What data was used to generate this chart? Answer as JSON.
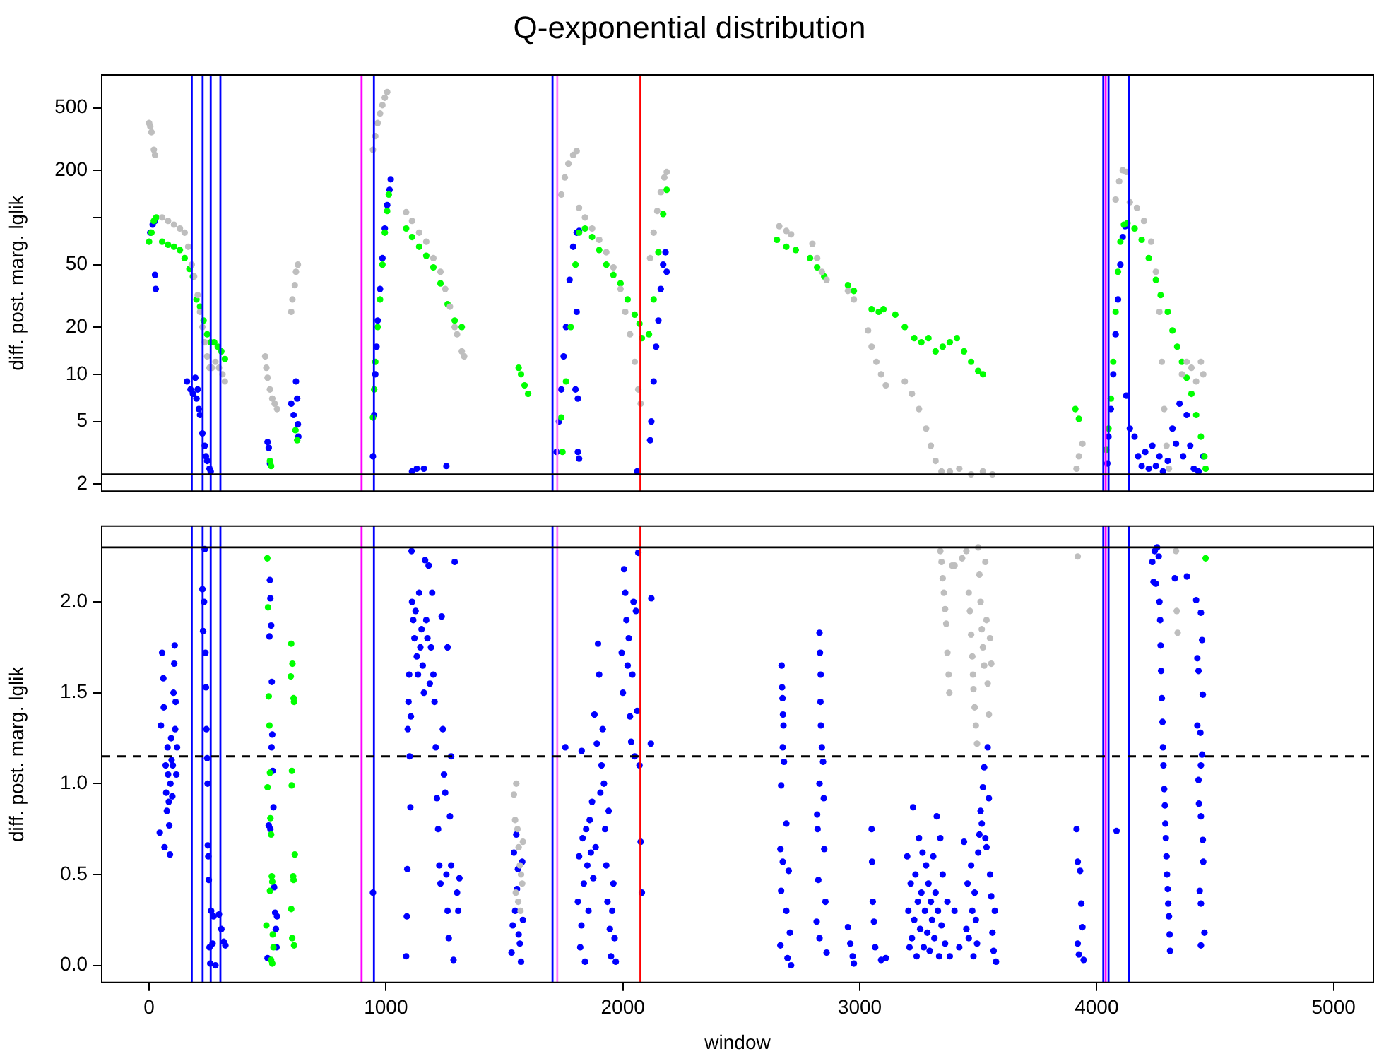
{
  "chart_data": [
    {
      "type": "scatter",
      "title": "Q-exponential distribution",
      "ylabel": "diff. post. marg. lglik",
      "xlim": [
        -200,
        5168
      ],
      "ylim": [
        1.8,
        811
      ],
      "yticks": [
        2,
        5,
        10,
        20,
        50,
        {
          "value": 100,
          "label": null
        },
        200,
        500
      ],
      "log": "y",
      "tick_labels": "y",
      "marker": "circle",
      "ref_lines": [
        {
          "axis": "x",
          "value": 180,
          "color": "#0000ff"
        },
        {
          "axis": "x",
          "value": 226,
          "color": "#0000ff"
        },
        {
          "axis": "x",
          "value": 260,
          "color": "#0000ff"
        },
        {
          "axis": "x",
          "value": 301,
          "color": "#0000ff"
        },
        {
          "axis": "x",
          "value": 897,
          "color": "#ff00ff"
        },
        {
          "axis": "x",
          "value": 949,
          "color": "#0000ff"
        },
        {
          "axis": "x",
          "value": 1703,
          "color": "#0000ff"
        },
        {
          "axis": "x",
          "value": 1723,
          "color": "#ff77ff"
        },
        {
          "axis": "x",
          "value": 2074,
          "color": "#ff0000"
        },
        {
          "axis": "x",
          "value": 4028,
          "color": "#0000ff"
        },
        {
          "axis": "x",
          "value": 4038,
          "color": "#ff00ff"
        },
        {
          "axis": "x",
          "value": 4050,
          "color": "#0000ff"
        },
        {
          "axis": "x",
          "value": 4135,
          "color": "#0000ff"
        },
        {
          "axis": "y",
          "value": 2.3,
          "color": "#000000"
        }
      ],
      "series": [
        {
          "color": "#bebebe",
          "x": [
            0,
            5,
            10,
            20,
            25,
            55,
            80,
            105,
            130,
            150,
            165,
            180,
            190,
            205,
            215,
            225,
            235,
            245,
            255,
            265,
            280,
            295,
            310,
            320,
            490,
            495,
            500,
            510,
            520,
            530,
            540,
            600,
            605,
            615,
            620,
            628,
            945,
            955,
            965,
            975,
            985,
            995,
            1005,
            1085,
            1110,
            1140,
            1170,
            1200,
            1230,
            1250,
            1270,
            1290,
            1300,
            1320,
            1330,
            1740,
            1755,
            1770,
            1790,
            1805,
            1815,
            1840,
            1870,
            1900,
            1930,
            1960,
            1990,
            2010,
            2030,
            2050,
            2065,
            2075,
            2115,
            2130,
            2145,
            2160,
            2175,
            2185,
            2660,
            2690,
            2710,
            2800,
            2820,
            2840,
            2860,
            2950,
            2975,
            3035,
            3050,
            3070,
            3090,
            3110,
            3190,
            3220,
            3250,
            3280,
            3300,
            3320,
            3345,
            3380,
            3420,
            3470,
            3520,
            3560,
            3915,
            3925,
            3940,
            4080,
            4095,
            4110,
            4125,
            4140,
            4170,
            4200,
            4230,
            4250,
            4265,
            4275,
            4285,
            4295,
            4305,
            4360,
            4380,
            4400,
            4420,
            4440,
            4450
          ],
          "values": [
            400,
            380,
            350,
            270,
            250,
            100,
            95,
            90,
            85,
            80,
            65,
            50,
            42,
            32,
            25,
            20,
            16,
            13,
            11,
            11,
            12,
            11,
            10,
            9,
            13,
            11,
            9.5,
            8,
            7,
            6.5,
            6,
            25,
            30,
            37,
            45,
            50,
            270,
            330,
            400,
            460,
            520,
            580,
            630,
            108,
            95,
            80,
            70,
            55,
            45,
            35,
            27,
            20,
            18,
            14,
            13,
            140,
            180,
            220,
            250,
            265,
            115,
            100,
            85,
            72,
            60,
            48,
            35,
            25,
            18,
            12,
            8,
            6.5,
            55,
            80,
            110,
            145,
            180,
            195,
            88,
            82,
            78,
            68,
            55,
            45,
            40,
            34,
            30,
            19,
            15,
            12,
            10,
            8.5,
            9,
            7.5,
            6,
            4.5,
            3.5,
            2.8,
            2.4,
            2.4,
            2.5,
            2.3,
            2.4,
            2.3,
            2.5,
            3.0,
            3.6,
            130,
            170,
            200,
            195,
            125,
            115,
            95,
            70,
            45,
            25,
            12,
            6,
            3.5,
            2.5,
            10,
            12,
            11,
            9,
            12,
            10
          ]
        },
        {
          "color": "#00ff00",
          "x": [
            0,
            10,
            20,
            30,
            55,
            80,
            105,
            130,
            150,
            170,
            185,
            200,
            215,
            230,
            245,
            260,
            275,
            290,
            305,
            320,
            510,
            515,
            618,
            625,
            945,
            950,
            955,
            965,
            975,
            985,
            995,
            1005,
            1012,
            1085,
            1110,
            1140,
            1170,
            1200,
            1230,
            1260,
            1290,
            1320,
            1560,
            1570,
            1585,
            1600,
            1740,
            1745,
            1760,
            1780,
            1800,
            1815,
            1840,
            1870,
            1900,
            1930,
            1960,
            1990,
            2020,
            2050,
            2070,
            2080,
            2110,
            2130,
            2150,
            2170,
            2185,
            2650,
            2690,
            2730,
            2790,
            2820,
            2850,
            2950,
            2975,
            3050,
            3080,
            3100,
            3150,
            3190,
            3230,
            3260,
            3290,
            3320,
            3350,
            3380,
            3410,
            3440,
            3470,
            3500,
            3520,
            3910,
            3925,
            4040,
            4050,
            4060,
            4070,
            4080,
            4090,
            4100,
            4115,
            4130,
            4160,
            4190,
            4220,
            4250,
            4270,
            4300,
            4320,
            4340,
            4360,
            4380,
            4400,
            4420,
            4440,
            4455,
            4460
          ],
          "values": [
            70,
            80,
            95,
            100,
            70,
            67,
            65,
            62,
            55,
            47,
            42,
            30,
            27,
            22,
            18,
            16,
            16,
            15,
            14,
            12.5,
            2.8,
            2.6,
            4.4,
            3.8,
            5.3,
            8,
            12,
            20,
            30,
            50,
            80,
            110,
            140,
            85,
            75,
            65,
            57,
            48,
            38,
            28,
            22,
            20,
            11,
            10,
            8.5,
            7.5,
            5.3,
            3.2,
            9,
            20,
            50,
            80,
            85,
            75,
            62,
            50,
            43,
            38,
            30,
            24,
            21,
            17,
            18,
            30,
            60,
            105,
            150,
            72,
            65,
            62,
            55,
            48,
            42,
            37,
            34,
            26,
            25,
            26,
            24,
            20,
            17,
            16,
            17,
            14,
            15,
            16,
            17,
            14,
            12,
            10.5,
            10,
            6,
            5.2,
            3.3,
            4.5,
            7,
            12,
            25,
            45,
            70,
            90,
            92,
            85,
            72,
            55,
            40,
            32,
            25,
            19,
            15,
            12,
            9.5,
            7.5,
            5.5,
            4,
            3,
            2.5
          ]
        },
        {
          "color": "#0000ff",
          "x": [
            5,
            15,
            25,
            25,
            28,
            160,
            175,
            185,
            195,
            200,
            205,
            210,
            215,
            225,
            235,
            240,
            245,
            255,
            260,
            500,
            505,
            510,
            600,
            610,
            620,
            625,
            628,
            630,
            945,
            950,
            955,
            960,
            965,
            975,
            985,
            995,
            1005,
            1015,
            1020,
            1110,
            1130,
            1160,
            1255,
            1720,
            1730,
            1740,
            1750,
            1760,
            1775,
            1790,
            1805,
            1815,
            1800,
            1810,
            1810,
            1815,
            1805,
            2060,
            2115,
            2120,
            2130,
            2140,
            2150,
            2160,
            2170,
            2180,
            2185,
            4045,
            4050,
            4060,
            4070,
            4080,
            4090,
            4100,
            4110,
            4120,
            4125,
            4140,
            4160,
            4175,
            4190,
            4205,
            4220,
            4235,
            4250,
            4265,
            4280,
            4300,
            4320,
            4335,
            4350,
            4365,
            4380,
            4395,
            4410,
            4430,
            4450
          ],
          "values": [
            80,
            90,
            95,
            43,
            35,
            9,
            8,
            7.5,
            9.5,
            7,
            8,
            6,
            5.5,
            4.2,
            3.5,
            3,
            2.8,
            2.5,
            2.4,
            3.7,
            3.4,
            2.7,
            6.5,
            5.5,
            9,
            7,
            4.8,
            4,
            3.0,
            5.5,
            10,
            15,
            22,
            35,
            55,
            85,
            120,
            150,
            175,
            2.4,
            2.5,
            2.5,
            2.6,
            3.2,
            5,
            8,
            13,
            20,
            40,
            65,
            80,
            82,
            8,
            7,
            3.2,
            2.9,
            25,
            2.4,
            3.8,
            5,
            9,
            15,
            22,
            35,
            50,
            60,
            45,
            2.7,
            4,
            6,
            10,
            18,
            30,
            50,
            75,
            88,
            7.3,
            4.5,
            4,
            3,
            2.6,
            3.2,
            2.5,
            3.5,
            2.6,
            3.0,
            2.4,
            2.8,
            4.5,
            3.6,
            6.5,
            3,
            5.5,
            3.5,
            2.5,
            2.4,
            3
          ]
        }
      ]
    },
    {
      "type": "scatter",
      "xlabel": "window",
      "ylabel": "diff. post. marg. lglik",
      "xlim": [
        -200,
        5168
      ],
      "ylim": [
        -0.094,
        2.417
      ],
      "xticks": [
        0,
        1000,
        2000,
        3000,
        4000,
        5000
      ],
      "yticks": [
        {
          "value": 0,
          "label": "0.0"
        },
        0.5,
        {
          "value": 1,
          "label": "1.0"
        },
        1.5,
        {
          "value": 2,
          "label": "2.0"
        }
      ],
      "marker": "circle",
      "ref_lines": [
        {
          "axis": "x",
          "value": 180,
          "color": "#0000ff"
        },
        {
          "axis": "x",
          "value": 226,
          "color": "#0000ff"
        },
        {
          "axis": "x",
          "value": 260,
          "color": "#0000ff"
        },
        {
          "axis": "x",
          "value": 301,
          "color": "#0000ff"
        },
        {
          "axis": "x",
          "value": 897,
          "color": "#ff00ff"
        },
        {
          "axis": "x",
          "value": 949,
          "color": "#0000ff"
        },
        {
          "axis": "x",
          "value": 1703,
          "color": "#0000ff"
        },
        {
          "axis": "x",
          "value": 1723,
          "color": "#ff77ff"
        },
        {
          "axis": "x",
          "value": 2074,
          "color": "#ff0000"
        },
        {
          "axis": "x",
          "value": 4028,
          "color": "#0000ff"
        },
        {
          "axis": "x",
          "value": 4038,
          "color": "#ff00ff"
        },
        {
          "axis": "x",
          "value": 4050,
          "color": "#0000ff"
        },
        {
          "axis": "x",
          "value": 4135,
          "color": "#0000ff"
        },
        {
          "axis": "y",
          "value": 2.3,
          "color": "#000000"
        },
        {
          "axis": "y",
          "value": 1.15,
          "color": "#000000",
          "line_style": "dashed"
        }
      ],
      "series": [
        {
          "color": "#bebebe",
          "x": [
            1540,
            1550,
            1545,
            1555,
            1560,
            1565,
            1570,
            1575,
            1548,
            1558,
            1568,
            1578,
            3340,
            3345,
            3350,
            3360,
            3365,
            3370,
            3375,
            3378,
            3355,
            3400,
            3432,
            3450,
            3460,
            3465,
            3470,
            3475,
            3478,
            3480,
            3485,
            3490,
            3495,
            3500,
            3505,
            3510,
            3515,
            3520,
            3525,
            3530,
            3535,
            3540,
            3545,
            3550,
            3555,
            3390,
            3920,
            4335,
            4338,
            4342
          ],
          "values": [
            0.94,
            1.0,
            0.8,
            0.75,
            0.65,
            0.55,
            0.5,
            0.45,
            0.4,
            0.35,
            0.3,
            0.68,
            2.28,
            2.22,
            2.13,
            1.96,
            1.88,
            1.72,
            1.6,
            1.5,
            2.05,
            2.2,
            2.24,
            2.28,
            2.05,
            1.95,
            1.82,
            1.7,
            1.6,
            1.52,
            1.42,
            1.32,
            1.22,
            2.3,
            2.15,
            2.0,
            1.85,
            1.75,
            1.65,
            2.22,
            1.9,
            1.55,
            1.38,
            1.8,
            1.66,
            2.2,
            2.25,
            2.28,
            1.95,
            1.83
          ]
        },
        {
          "color": "#00ff00",
          "x": [
            499,
            502,
            505,
            508,
            510,
            500,
            512,
            515,
            518,
            520,
            510,
            495,
            522,
            525,
            515,
            520,
            600,
            605,
            598,
            610,
            612,
            603,
            602,
            615,
            608,
            610,
            600,
            604,
            612,
            4460
          ],
          "values": [
            2.24,
            1.97,
            1.48,
            1.32,
            1.06,
            0.98,
            0.81,
            0.72,
            0.49,
            0.46,
            0.41,
            0.22,
            0.17,
            0.1,
            0.03,
            0.01,
            1.77,
            1.66,
            1.59,
            1.47,
            1.45,
            1.07,
            0.99,
            0.61,
            0.49,
            0.47,
            0.31,
            0.15,
            0.11,
            2.24
          ]
        },
        {
          "color": "#0000ff",
          "x": [
            45,
            50,
            55,
            60,
            62,
            65,
            70,
            72,
            75,
            78,
            80,
            83,
            85,
            88,
            90,
            93,
            95,
            98,
            100,
            103,
            106,
            108,
            110,
            112,
            115,
            118,
            225,
            228,
            232,
            238,
            240,
            242,
            245,
            247,
            248,
            250,
            252,
            255,
            258,
            262,
            268,
            272,
            280,
            295,
            305,
            315,
            322,
            235,
            500,
            510,
            512,
            515,
            508,
            518,
            520,
            517,
            522,
            525,
            505,
            512,
            528,
            532,
            535,
            538,
            540,
            945,
            1085,
            1088,
            1090,
            1092,
            1095,
            1098,
            1100,
            1103,
            1105,
            1108,
            1110,
            1115,
            1120,
            1125,
            1130,
            1135,
            1140,
            1145,
            1150,
            1155,
            1160,
            1165,
            1170,
            1175,
            1180,
            1185,
            1190,
            1195,
            1200,
            1205,
            1210,
            1215,
            1220,
            1225,
            1230,
            1235,
            1240,
            1245,
            1250,
            1255,
            1260,
            1265,
            1270,
            1275,
            1285,
            1300,
            1305,
            1310,
            1290,
            1260,
            1275,
            1530,
            1535,
            1540,
            1545,
            1550,
            1553,
            1557,
            1560,
            1565,
            1570,
            1575,
            1578,
            1757,
            1826,
            1810,
            1815,
            1820,
            1825,
            1830,
            1835,
            1840,
            1845,
            1850,
            1855,
            1860,
            1865,
            1870,
            1875,
            1880,
            1885,
            1890,
            1895,
            1900,
            1905,
            1910,
            1915,
            1920,
            1925,
            1930,
            1935,
            1940,
            1945,
            1950,
            1955,
            1960,
            1965,
            1970,
            1995,
            2000,
            2005,
            2010,
            2015,
            2020,
            2025,
            2030,
            2035,
            2040,
            2045,
            2050,
            2055,
            2060,
            2065,
            2070,
            2075,
            2080,
            2120,
            2118,
            2670,
            2672,
            2674,
            2676,
            2678,
            2675,
            2680,
            2668,
            2690,
            2665,
            2675,
            2700,
            2668,
            2690,
            2705,
            2665,
            2695,
            2710,
            2830,
            2832,
            2835,
            2834,
            2836,
            2840,
            2845,
            2830,
            2848,
            2820,
            2822,
            2850,
            2825,
            2855,
            2818,
            2830,
            2860,
            2950,
            2960,
            2970,
            2975,
            3050,
            3052,
            3055,
            3060,
            3065,
            3090,
            3110,
            3200,
            3205,
            3210,
            3215,
            3220,
            3225,
            3230,
            3235,
            3240,
            3245,
            3250,
            3255,
            3260,
            3265,
            3270,
            3275,
            3280,
            3285,
            3290,
            3295,
            3300,
            3305,
            3310,
            3315,
            3320,
            3325,
            3330,
            3335,
            3340,
            3345,
            3350,
            3360,
            3370,
            3380,
            3400,
            3420,
            3440,
            3450,
            3455,
            3460,
            3470,
            3475,
            3480,
            3485,
            3490,
            3495,
            3500,
            3505,
            3510,
            3515,
            3520,
            3525,
            3530,
            3535,
            3540,
            3545,
            3550,
            3555,
            3560,
            3565,
            3570,
            3575,
            3915,
            3920,
            3930,
            3935,
            3940,
            3920,
            3945,
            3925,
            4084,
            4235,
            4245,
            4255,
            4262,
            4240,
            4250,
            4265,
            4268,
            4270,
            4272,
            4275,
            4278,
            4280,
            4282,
            4285,
            4288,
            4290,
            4292,
            4295,
            4297,
            4300,
            4302,
            4305,
            4308,
            4310,
            4330,
            4381,
            4420,
            4440,
            4445,
            4425,
            4430,
            4448,
            4425,
            4438,
            4445,
            4440,
            4430,
            4432,
            4440,
            4448,
            4450,
            4435,
            4440,
            4455,
            4440
          ],
          "values": [
            0.73,
            1.32,
            1.72,
            1.58,
            1.42,
            0.65,
            1.1,
            0.95,
            0.85,
            1.2,
            1.05,
            0.9,
            0.77,
            0.61,
            1.0,
            1.25,
            1.13,
            0.93,
            1.1,
            1.5,
            1.66,
            1.76,
            1.3,
            1.45,
            1.05,
            1.2,
            2.07,
            1.84,
            2.0,
            1.72,
            1.53,
            1.3,
            1.14,
            1.0,
            0.66,
            0.6,
            0.47,
            0.1,
            0.01,
            0.3,
            0.12,
            0.27,
            0.0,
            0.28,
            0.2,
            0.13,
            0.11,
            2.29,
            0.04,
            2.12,
            2.02,
            1.87,
            1.81,
            1.56,
            1.27,
            1.2,
            1.07,
            0.87,
            0.77,
            0.75,
            0.43,
            0.29,
            0.2,
            0.1,
            0.27,
            0.4,
            0.05,
            0.27,
            0.53,
            1.3,
            1.45,
            1.6,
            1.15,
            0.87,
            1.37,
            2.28,
            2.0,
            1.9,
            1.8,
            1.95,
            1.7,
            1.6,
            2.05,
            1.75,
            1.85,
            1.65,
            1.5,
            2.23,
            1.9,
            1.8,
            2.2,
            1.55,
            1.75,
            2.05,
            1.6,
            1.45,
            1.2,
            0.92,
            0.75,
            0.55,
            0.45,
            1.92,
            1.3,
            1.05,
            0.95,
            0.5,
            0.3,
            0.15,
            0.82,
            0.55,
            0.03,
            0.4,
            0.3,
            0.48,
            2.22,
            1.75,
            1.15,
            0.07,
            0.22,
            0.62,
            0.3,
            0.72,
            0.42,
            0.53,
            0.17,
            0.12,
            0.02,
            0.57,
            0.25,
            1.2,
            1.18,
            0.35,
            0.6,
            0.1,
            0.22,
            0.7,
            0.45,
            0.02,
            0.75,
            0.55,
            0.3,
            0.8,
            0.62,
            0.9,
            0.48,
            1.38,
            0.65,
            1.22,
            1.77,
            1.6,
            0.95,
            1.1,
            1.3,
            1.0,
            0.75,
            0.55,
            0.35,
            0.85,
            0.2,
            0.05,
            0.3,
            0.45,
            0.15,
            0.02,
            1.72,
            1.5,
            2.18,
            2.05,
            1.9,
            1.65,
            1.8,
            1.37,
            1.23,
            1.6,
            2.0,
            1.15,
            1.95,
            1.4,
            2.27,
            1.1,
            0.68,
            0.4,
            2.02,
            1.22,
            1.65,
            1.53,
            1.47,
            1.38,
            1.32,
            1.2,
            1.12,
            0.99,
            0.78,
            0.64,
            0.57,
            0.52,
            0.41,
            0.3,
            0.18,
            0.11,
            0.04,
            0.0,
            1.83,
            1.72,
            1.6,
            1.45,
            1.32,
            1.2,
            1.12,
            1.0,
            0.92,
            0.83,
            0.75,
            0.64,
            0.47,
            0.35,
            0.24,
            0.15,
            0.07,
            0.21,
            0.12,
            0.05,
            0.01,
            0.75,
            0.57,
            0.35,
            0.24,
            0.1,
            0.03,
            0.04,
            0.6,
            0.3,
            0.1,
            0.45,
            0.15,
            0.87,
            0.25,
            0.5,
            0.05,
            0.35,
            0.7,
            0.2,
            0.4,
            0.62,
            0.1,
            0.3,
            0.55,
            0.18,
            0.45,
            0.08,
            0.35,
            0.25,
            0.6,
            0.15,
            0.4,
            0.82,
            0.3,
            0.05,
            0.7,
            0.22,
            0.5,
            0.12,
            0.35,
            0.05,
            0.3,
            0.1,
            0.68,
            0.2,
            0.45,
            0.15,
            0.55,
            0.3,
            0.05,
            0.4,
            0.25,
            0.12,
            0.62,
            0.72,
            0.85,
            0.78,
            0.98,
            1.09,
            0.7,
            0.65,
            1.2,
            0.92,
            0.5,
            0.38,
            0.18,
            0.08,
            0.3,
            0.02,
            0.75,
            0.57,
            0.52,
            0.34,
            0.21,
            0.12,
            0.03,
            0.06,
            0.74,
            2.22,
            2.28,
            2.3,
            2.25,
            2.11,
            2.1,
            2.0,
            1.9,
            1.76,
            1.62,
            1.47,
            1.34,
            1.2,
            1.1,
            0.97,
            0.88,
            0.78,
            0.7,
            0.6,
            0.5,
            0.42,
            0.34,
            0.27,
            0.17,
            0.08,
            2.13,
            2.14,
            2.01,
            1.94,
            1.79,
            1.69,
            1.62,
            1.49,
            1.32,
            1.28,
            1.16,
            1.1,
            1.02,
            0.89,
            0.82,
            0.69,
            0.57,
            0.41,
            0.34,
            0.18,
            0.11
          ]
        }
      ]
    }
  ]
}
